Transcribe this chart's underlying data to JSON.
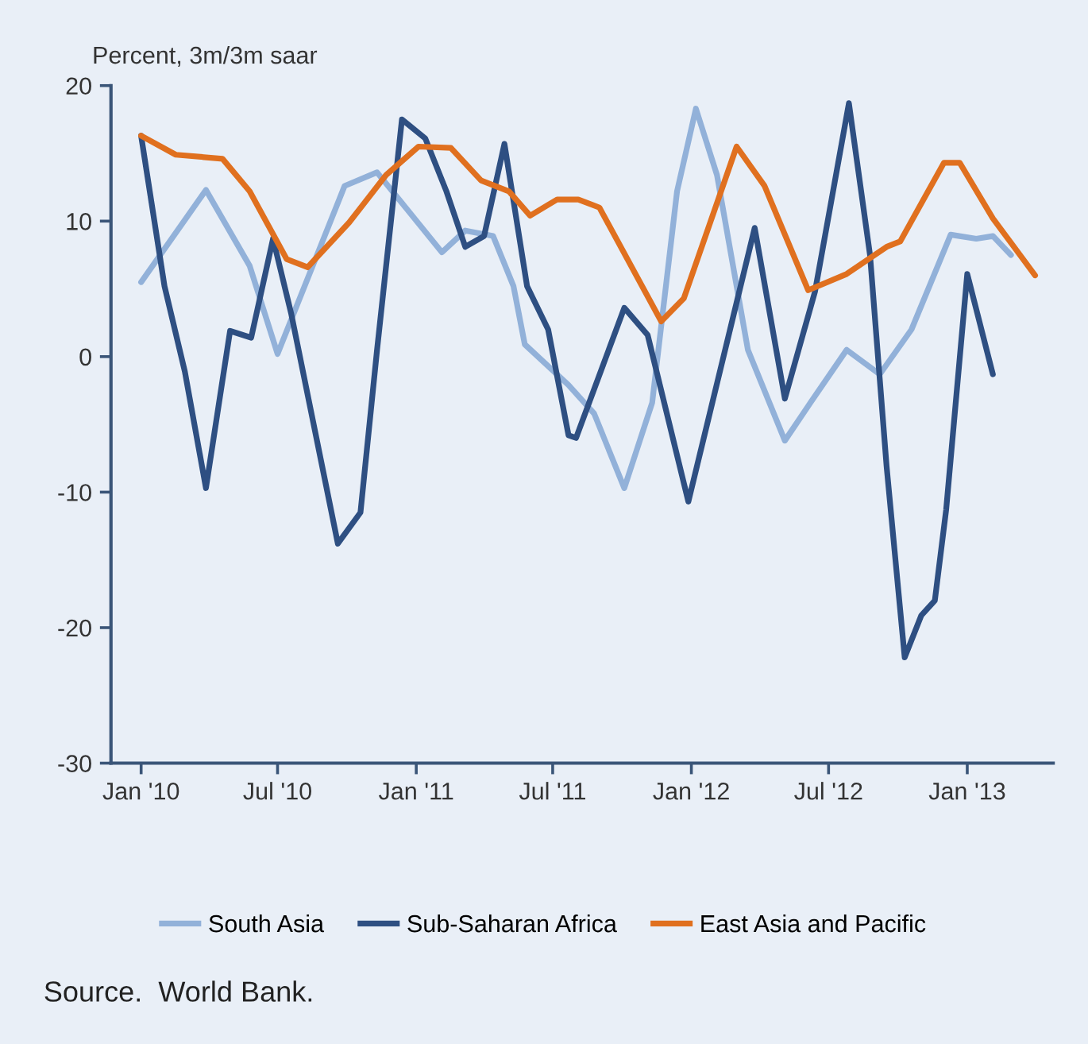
{
  "chart_data": {
    "type": "line",
    "ylabel": "Percent, 3m/3m saar",
    "annotations": [
      "Source.  World Bank."
    ],
    "xlim": [
      "2009-11-22",
      "2013-04-25"
    ],
    "xticks": [
      {
        "value": "2010-01-01",
        "label": "Jan '10"
      },
      {
        "value": "2010-07-01",
        "label": "Jul '10"
      },
      {
        "value": "2011-01-01",
        "label": "Jan '11"
      },
      {
        "value": "2011-07-01",
        "label": "Jul '11"
      },
      {
        "value": "2012-01-01",
        "label": "Jan '12"
      },
      {
        "value": "2012-07-01",
        "label": "Jul '12"
      },
      {
        "value": "2013-01-01",
        "label": "Jan '13"
      }
    ],
    "ylim": [
      -30,
      20
    ],
    "yticks": [
      -30,
      -20,
      -10,
      0,
      10,
      20
    ],
    "grid": false,
    "legend": "bottom",
    "line_style": "solid",
    "marker": "none",
    "series": [
      {
        "name": "South Asia",
        "color": "#92b1d9",
        "x": [
          "2010-01-01",
          "2010-03-28",
          "2010-05-25",
          "2010-07-01",
          "2010-09-28",
          "2010-11-10",
          "2011-02-04",
          "2011-03-07",
          "2011-04-13",
          "2011-05-10",
          "2011-05-25",
          "2011-07-22",
          "2011-08-25",
          "2011-10-04",
          "2011-11-10",
          "2011-12-13",
          "2012-01-07",
          "2012-02-04",
          "2012-03-16",
          "2012-05-04",
          "2012-06-07",
          "2012-07-25",
          "2012-09-07",
          "2012-10-19",
          "2012-12-10",
          "2013-01-13",
          "2013-02-04",
          "2013-02-28"
        ],
        "values": [
          5.5,
          12.3,
          6.7,
          0.2,
          12.6,
          13.6,
          7.7,
          9.3,
          8.9,
          5.2,
          0.9,
          -2.1,
          -4.2,
          -9.7,
          -3.4,
          12.2,
          18.3,
          13.4,
          0.5,
          -6.2,
          -3.4,
          0.5,
          -1.3,
          2,
          9,
          8.7,
          8.9,
          7.5
        ]
      },
      {
        "name": "Sub-Saharan Africa",
        "color": "#2e4f82",
        "x": [
          "2010-01-01",
          "2010-02-01",
          "2010-02-28",
          "2010-03-28",
          "2010-04-29",
          "2010-05-27",
          "2010-06-25",
          "2010-07-19",
          "2010-09-19",
          "2010-10-19",
          "2010-11-10",
          "2010-12-13",
          "2011-01-13",
          "2011-02-10",
          "2011-03-07",
          "2011-04-01",
          "2011-04-28",
          "2011-05-28",
          "2011-06-25",
          "2011-07-22",
          "2011-08-01",
          "2011-10-04",
          "2011-11-04",
          "2011-12-28",
          "2012-03-25",
          "2012-05-04",
          "2012-06-13",
          "2012-07-28",
          "2012-08-25",
          "2012-09-16",
          "2012-10-10",
          "2012-11-01",
          "2012-11-19",
          "2012-12-04",
          "2013-01-01",
          "2013-02-04"
        ],
        "values": [
          16.3,
          5.2,
          -1.1,
          -9.7,
          1.9,
          1.4,
          8.7,
          3.2,
          -13.8,
          -11.5,
          0.5,
          17.5,
          16.1,
          12.2,
          8.1,
          8.9,
          15.7,
          5.2,
          2,
          -5.8,
          -6,
          3.6,
          1.6,
          -10.7,
          9.5,
          -3.1,
          4.8,
          18.7,
          7.5,
          -8.1,
          -22.2,
          -19.1,
          -18,
          -11.3,
          6.1,
          -1.3
        ]
      },
      {
        "name": "East Asia and Pacific",
        "color": "#e0701f",
        "x": [
          "2010-01-01",
          "2010-02-16",
          "2010-04-19",
          "2010-05-25",
          "2010-07-13",
          "2010-08-10",
          "2010-10-04",
          "2010-11-22",
          "2011-01-04",
          "2011-02-16",
          "2011-03-28",
          "2011-05-04",
          "2011-06-01",
          "2011-07-07",
          "2011-08-04",
          "2011-09-01",
          "2011-11-22",
          "2011-12-22",
          "2012-03-01",
          "2012-04-07",
          "2012-06-04",
          "2012-07-25",
          "2012-09-16",
          "2012-10-04",
          "2012-12-01",
          "2012-12-22",
          "2013-02-04",
          "2013-04-01"
        ],
        "values": [
          16.3,
          14.9,
          14.6,
          12.2,
          7.2,
          6.6,
          9.9,
          13.4,
          15.5,
          15.4,
          13,
          12.2,
          10.4,
          11.6,
          11.6,
          11,
          2.6,
          4.3,
          15.5,
          12.6,
          4.9,
          6.1,
          8.1,
          8.5,
          14.3,
          14.3,
          10.2,
          6
        ]
      }
    ]
  }
}
